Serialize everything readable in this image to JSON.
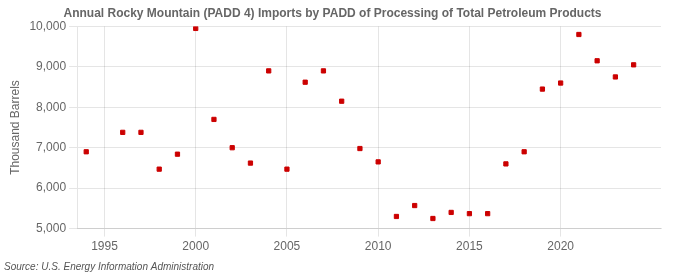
{
  "chart_data": {
    "type": "scatter",
    "title": "Annual Rocky Mountain (PADD 4) Imports by PADD of Processing of Total Petroleum Products",
    "ylabel": "Thousand Barrels",
    "annotation": "Source: U.S. Energy Information Administration",
    "x": [
      1994,
      1996,
      1997,
      1998,
      1999,
      2000,
      2001,
      2002,
      2003,
      2004,
      2005,
      2006,
      2007,
      2008,
      2009,
      2010,
      2011,
      2012,
      2013,
      2014,
      2015,
      2016,
      2017,
      2018,
      2019,
      2020,
      2021,
      2022,
      2023,
      2024
    ],
    "values": [
      6900,
      7380,
      7380,
      6470,
      6840,
      9950,
      7700,
      7000,
      6620,
      8900,
      6470,
      8620,
      8900,
      8150,
      6980,
      6650,
      5300,
      5570,
      5250,
      5400,
      5370,
      5370,
      6600,
      6900,
      8450,
      8600,
      9800,
      9150,
      8750,
      9050
    ],
    "color": "#cc0000",
    "marker": "square",
    "xlim": [
      1993.5,
      2025.5
    ],
    "xticks": [
      1995,
      2000,
      2005,
      2010,
      2015,
      2020
    ],
    "ylim": [
      5000,
      10000
    ],
    "yticks": [
      {
        "value": 5000,
        "label": "5,000"
      },
      {
        "value": 6000,
        "label": "6,000"
      },
      {
        "value": 7000,
        "label": "7,000"
      },
      {
        "value": 8000,
        "label": "8,000"
      },
      {
        "value": 9000,
        "label": "9,000"
      },
      {
        "value": 10000,
        "label": "10,000"
      }
    ],
    "grid": true
  }
}
